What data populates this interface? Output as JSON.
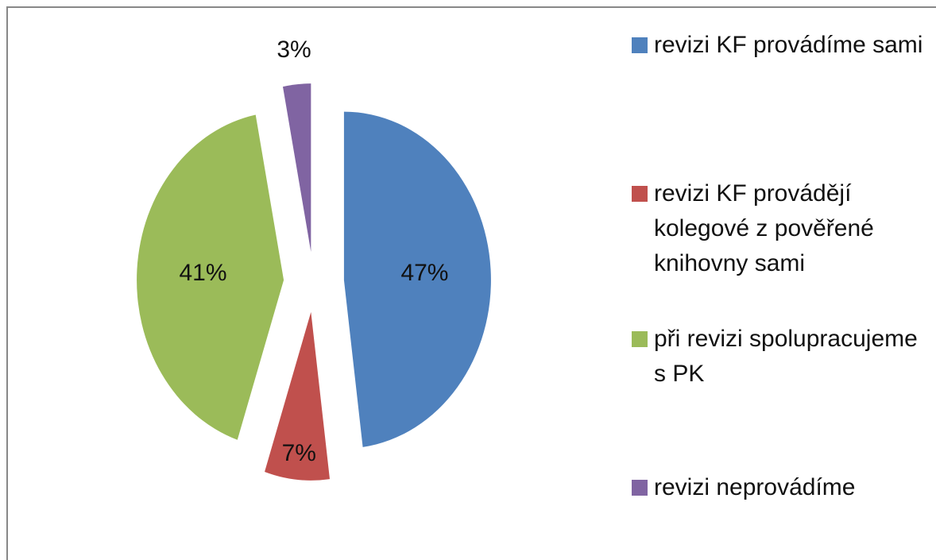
{
  "chart_data": {
    "type": "pie",
    "categories": [
      "revizi KF provádíme sami",
      "revizi KF provádějí kolegové z pověřené knihovny sami",
      "při revizi spolupracujeme s PK",
      "revizi neprovádíme"
    ],
    "values": [
      47,
      7,
      41,
      3
    ],
    "value_labels": [
      "47%",
      "7%",
      "41%",
      "3%"
    ],
    "colors": [
      "#4f81bd",
      "#c0504d",
      "#9bbb59",
      "#8064a2"
    ],
    "legend": "right"
  }
}
